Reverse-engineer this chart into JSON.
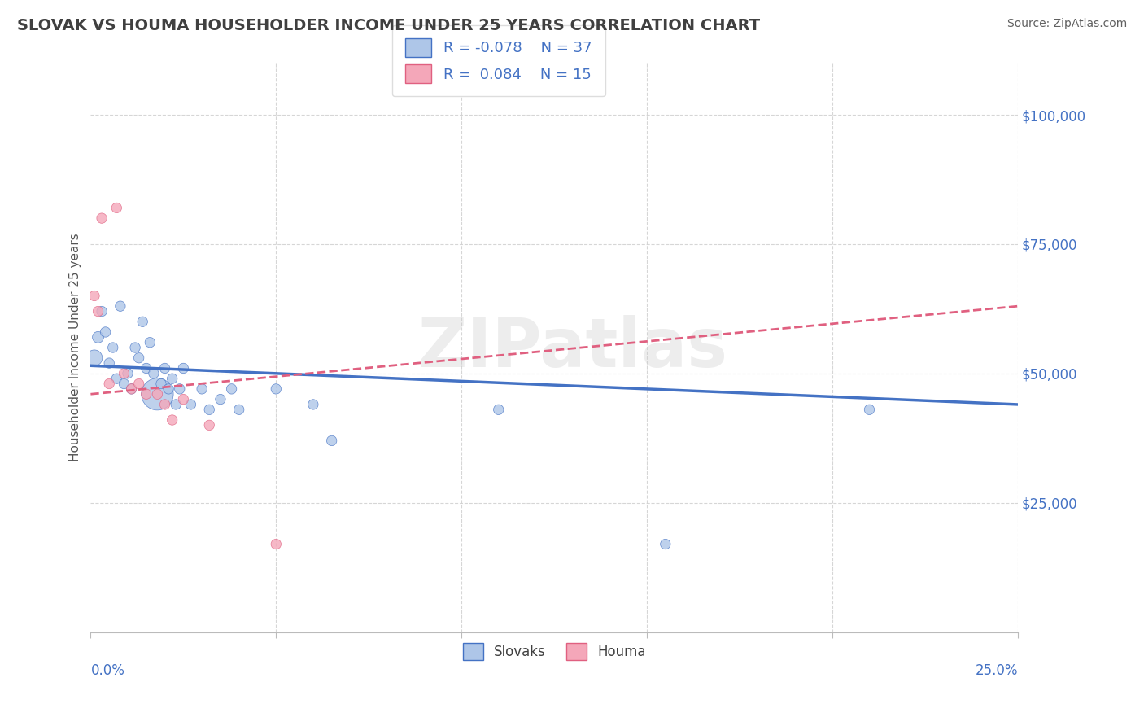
{
  "title": "SLOVAK VS HOUMA HOUSEHOLDER INCOME UNDER 25 YEARS CORRELATION CHART",
  "source": "Source: ZipAtlas.com",
  "ylabel": "Householder Income Under 25 years",
  "y_ticks": [
    0,
    25000,
    50000,
    75000,
    100000
  ],
  "y_tick_labels": [
    "",
    "$25,000",
    "$50,000",
    "$75,000",
    "$100,000"
  ],
  "xlim": [
    0.0,
    0.25
  ],
  "ylim": [
    0,
    110000
  ],
  "watermark": "ZIPatlas",
  "legend_r_slovak": "-0.078",
  "legend_n_slovak": "37",
  "legend_r_houma": "0.084",
  "legend_n_houma": "15",
  "slovak_color": "#aec6e8",
  "houma_color": "#f4a7b9",
  "slovak_line_color": "#4472c4",
  "houma_line_color": "#e06080",
  "background_color": "#ffffff",
  "grid_color": "#cccccc",
  "title_color": "#404040",
  "axis_label_color": "#4472c4",
  "slovak_x": [
    0.001,
    0.002,
    0.003,
    0.004,
    0.005,
    0.006,
    0.007,
    0.008,
    0.009,
    0.01,
    0.011,
    0.012,
    0.013,
    0.014,
    0.015,
    0.016,
    0.017,
    0.018,
    0.019,
    0.02,
    0.021,
    0.022,
    0.023,
    0.024,
    0.025,
    0.027,
    0.03,
    0.032,
    0.035,
    0.038,
    0.04,
    0.05,
    0.06,
    0.065,
    0.11,
    0.155,
    0.21
  ],
  "slovak_y": [
    53000,
    57000,
    62000,
    58000,
    52000,
    55000,
    49000,
    63000,
    48000,
    50000,
    47000,
    55000,
    53000,
    60000,
    51000,
    56000,
    50000,
    46000,
    48000,
    51000,
    47000,
    49000,
    44000,
    47000,
    51000,
    44000,
    47000,
    43000,
    45000,
    47000,
    43000,
    47000,
    44000,
    37000,
    43000,
    17000,
    43000
  ],
  "slovak_sizes": [
    200,
    100,
    80,
    80,
    80,
    80,
    80,
    80,
    80,
    80,
    80,
    80,
    80,
    80,
    80,
    80,
    80,
    800,
    80,
    80,
    80,
    80,
    80,
    80,
    80,
    80,
    80,
    80,
    80,
    80,
    80,
    80,
    80,
    80,
    80,
    80,
    80
  ],
  "houma_x": [
    0.001,
    0.002,
    0.003,
    0.005,
    0.007,
    0.009,
    0.011,
    0.013,
    0.015,
    0.018,
    0.02,
    0.022,
    0.025,
    0.032,
    0.05
  ],
  "houma_y": [
    65000,
    62000,
    80000,
    48000,
    82000,
    50000,
    47000,
    48000,
    46000,
    46000,
    44000,
    41000,
    45000,
    40000,
    17000
  ],
  "houma_sizes": [
    80,
    80,
    80,
    80,
    80,
    80,
    80,
    80,
    80,
    80,
    80,
    80,
    80,
    80,
    80
  ],
  "slovak_trend_x": [
    0.0,
    0.25
  ],
  "slovak_trend_y": [
    51500,
    44000
  ],
  "houma_trend_x": [
    0.0,
    0.25
  ],
  "houma_trend_y": [
    46000,
    63000
  ]
}
